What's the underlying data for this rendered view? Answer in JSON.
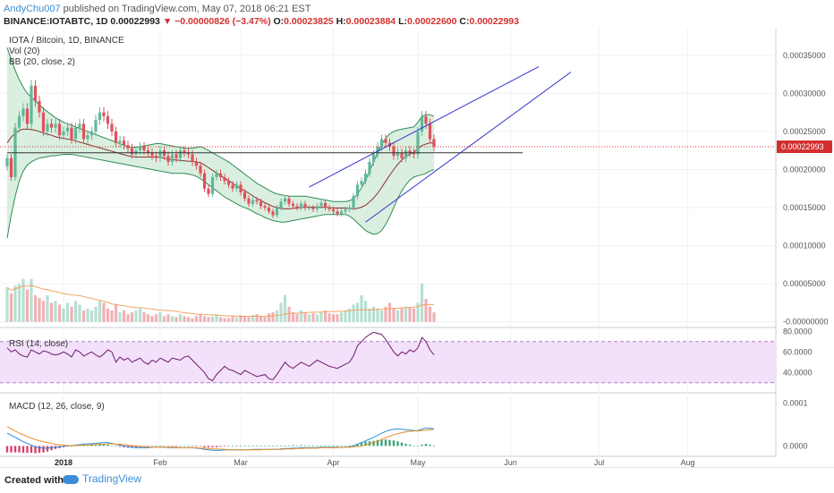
{
  "header": {
    "author": "AndyChu007",
    "published": "published on TradingView.com, May 07, 2018 06:21 EST"
  },
  "quote": {
    "symbol": "BINANCE:IOTABTC, 1D",
    "price": "0.00022993",
    "arrow": "▼",
    "change": "−0.00000826 (−3.47%)",
    "o_label": "O:",
    "o": "0.00023825",
    "h_label": "H:",
    "h": "0.00023884",
    "l_label": "L:",
    "l": "0.00022600",
    "c_label": "C:",
    "c": "0.00022993"
  },
  "legend": {
    "title": "IOTA / Bitcoin, 1D, BINANCE",
    "vol": "Vol (20)",
    "bb": "BB (20, close, 2)",
    "rsi": "RSI (14, close)",
    "macd": "MACD (12, 26, close, 9)"
  },
  "footer": {
    "created": "Created with",
    "brand": "TradingView"
  },
  "colors": {
    "up": "#5fb89b",
    "down": "#e0515c",
    "bb_fill": "#cde9d4",
    "bb_line": "#2e8b57",
    "basis": "#8b2f2f",
    "channel": "#3333cc",
    "rsi_line": "#6a1b6a",
    "rsi_band": "#f3e0fb",
    "macd": "#2a8ed8",
    "signal": "#f08a24",
    "vol_ma": "#f4a460",
    "price_line": "#d32f2f"
  },
  "chart_data": [
    {
      "type": "candlestick",
      "title": "IOTA / Bitcoin, 1D, BINANCE",
      "x_ticks": [
        "2018",
        "Feb",
        "Mar",
        "Apr",
        "May",
        "Jun",
        "Jul",
        "Aug"
      ],
      "y_ticks": [
        "0.00035000",
        "0.00030000",
        "0.00025000",
        "0.00020000",
        "0.00015000",
        "0.00010000",
        "0.00005000",
        "-0.00000000"
      ],
      "ylim": [
        -5e-06,
        0.000385
      ],
      "last_price": 0.00022993,
      "last_price_label": "0.00022993",
      "series": [
        {
          "name": "IOTABTC",
          "close": [
            0.000215,
            0.00019,
            0.000255,
            0.00027,
            0.00028,
            0.00026,
            0.00031,
            0.00029,
            0.000275,
            0.00025,
            0.00026,
            0.000255,
            0.00026,
            0.000245,
            0.00025,
            0.000255,
            0.00024,
            0.000255,
            0.00026,
            0.00024,
            0.000245,
            0.00025,
            0.000265,
            0.000275,
            0.00027,
            0.00026,
            0.00025,
            0.000235,
            0.000238,
            0.000232,
            0.000228,
            0.00022,
            0.000225,
            0.00023,
            0.000225,
            0.000222,
            0.000218,
            0.000215,
            0.000225,
            0.000218,
            0.00021,
            0.00022,
            0.000215,
            0.000225,
            0.000222,
            0.00022,
            0.00021,
            0.000205,
            0.000195,
            0.000175,
            0.000168,
            0.00019,
            0.000195,
            0.00019,
            0.000185,
            0.00018,
            0.000175,
            0.00018,
            0.00017,
            0.000162,
            0.000155,
            0.00016,
            0.000158,
            0.000152,
            0.00015,
            0.000145,
            0.00014,
            0.00015,
            0.000158,
            0.000162,
            0.000155,
            0.000152,
            0.00015,
            0.000155,
            0.00015,
            0.00015,
            0.000148,
            0.000152,
            0.000156,
            0.00015,
            0.000148,
            0.000145,
            0.000142,
            0.000145,
            0.000148,
            0.00015,
            0.000165,
            0.00018,
            0.000185,
            0.000195,
            0.00021,
            0.00022,
            0.00023,
            0.00024,
            0.000235,
            0.00023,
            0.000218,
            0.000222,
            0.000215,
            0.000225,
            0.000222,
            0.00022,
            0.00025,
            0.00027,
            0.00026,
            0.00024,
            0.00023
          ],
          "bb_upper": [
            0.00036,
            0.000345,
            0.00033,
            0.000318,
            0.000308,
            0.0003,
            0.000295,
            0.00029,
            0.000285,
            0.00028,
            0.000276,
            0.000272,
            0.000268,
            0.000265,
            0.000262,
            0.00026,
            0.000258,
            0.000256,
            0.000254,
            0.000252,
            0.00025,
            0.000248,
            0.000246,
            0.000244,
            0.000242,
            0.00024,
            0.000238,
            0.000236,
            0.000234,
            0.000232,
            0.00023,
            0.000229,
            0.000229,
            0.00023,
            0.000231,
            0.000232,
            0.000233,
            0.000234,
            0.000234,
            0.000233,
            0.000232,
            0.000231,
            0.00023,
            0.000229,
            0.000228,
            0.000228,
            0.000228,
            0.000229,
            0.00023,
            0.000228,
            0.000225,
            0.000222,
            0.000219,
            0.000216,
            0.000213,
            0.00021,
            0.000206,
            0.000202,
            0.000198,
            0.000194,
            0.00019,
            0.000186,
            0.000182,
            0.000179,
            0.000176,
            0.000173,
            0.00017,
            0.000168,
            0.000167,
            0.000166,
            0.000165,
            0.000165,
            0.000165,
            0.000165,
            0.000165,
            0.000164,
            0.000163,
            0.000162,
            0.000161,
            0.00016,
            0.000159,
            0.000158,
            0.000158,
            0.000158,
            0.000158,
            0.000159,
            0.000162,
            0.000168,
            0.000176,
            0.000186,
            0.000198,
            0.00021,
            0.000222,
            0.000233,
            0.000241,
            0.000247,
            0.00025,
            0.000252,
            0.000253,
            0.000254,
            0.000255,
            0.000256,
            0.000262,
            0.00027,
            0.000272,
            0.000272,
            0.00027
          ],
          "bb_lower": [
            0.00011,
            0.00014,
            0.000165,
            0.000185,
            0.000198,
            0.000206,
            0.00021,
            0.000213,
            0.000215,
            0.000216,
            0.000217,
            0.000218,
            0.000218,
            0.000219,
            0.00022,
            0.00022,
            0.00022,
            0.000219,
            0.000218,
            0.000217,
            0.000216,
            0.000215,
            0.000214,
            0.000213,
            0.000212,
            0.000211,
            0.00021,
            0.000209,
            0.000208,
            0.000207,
            0.000206,
            0.000205,
            0.000204,
            0.000203,
            0.000202,
            0.000201,
            0.0002,
            0.000199,
            0.000198,
            0.000197,
            0.000196,
            0.000195,
            0.000195,
            0.000195,
            0.000195,
            0.000194,
            0.000193,
            0.000191,
            0.000188,
            0.000184,
            0.00018,
            0.000176,
            0.000172,
            0.000168,
            0.000164,
            0.000161,
            0.000158,
            0.000155,
            0.000152,
            0.00015,
            0.000148,
            0.000145,
            0.000142,
            0.00014,
            0.000137,
            0.000135,
            0.000133,
            0.000132,
            0.000131,
            0.000131,
            0.000132,
            0.000133,
            0.000134,
            0.000135,
            0.000136,
            0.000137,
            0.000138,
            0.000139,
            0.00014,
            0.000141,
            0.000141,
            0.000141,
            0.000141,
            0.000141,
            0.000141,
            0.000139,
            0.000135,
            0.00013,
            0.000125,
            0.00012,
            0.000117,
            0.000115,
            0.000116,
            0.00012,
            0.000128,
            0.000138,
            0.00015,
            0.000162,
            0.000172,
            0.00018,
            0.000186,
            0.00019,
            0.000192,
            0.000193,
            0.000195,
            0.000198,
            0.0002
          ]
        }
      ],
      "drawings": [
        {
          "type": "trendline",
          "from": [
            75,
            0.000177
          ],
          "to": [
            132,
            0.000335
          ]
        },
        {
          "type": "trendline",
          "from": [
            89,
            0.000131
          ],
          "to": [
            140,
            0.000328
          ]
        },
        {
          "type": "horizontal",
          "from": [
            0,
            0.000222
          ],
          "to": [
            128,
            0.000222
          ]
        }
      ]
    },
    {
      "type": "bar",
      "name": "Vol (20)",
      "values": [
        36,
        30,
        38,
        40,
        45,
        34,
        45,
        28,
        25,
        22,
        28,
        20,
        22,
        18,
        14,
        20,
        16,
        22,
        18,
        12,
        14,
        12,
        16,
        22,
        20,
        14,
        12,
        18,
        10,
        12,
        8,
        10,
        12,
        14,
        10,
        8,
        6,
        8,
        10,
        6,
        8,
        6,
        5,
        8,
        6,
        5,
        4,
        6,
        8,
        6,
        5,
        6,
        8,
        5,
        4,
        4,
        6,
        5,
        7,
        6,
        5,
        7,
        8,
        6,
        5,
        9,
        10,
        12,
        20,
        28,
        16,
        10,
        8,
        12,
        10,
        8,
        9,
        8,
        10,
        12,
        9,
        8,
        8,
        10,
        12,
        14,
        18,
        20,
        28,
        22,
        14,
        16,
        14,
        12,
        16,
        20,
        14,
        12,
        14,
        16,
        15,
        14,
        20,
        40,
        24,
        16,
        10
      ]
    },
    {
      "type": "line",
      "name": "RSI (14, close)",
      "y_ticks": [
        "80.0000",
        "60.0000",
        "40.0000"
      ],
      "ylim": [
        22,
        82
      ],
      "values": [
        64,
        60,
        62,
        58,
        56,
        55,
        62,
        60,
        58,
        61,
        60,
        58,
        57,
        58,
        60,
        58,
        55,
        62,
        60,
        56,
        58,
        60,
        57,
        55,
        58,
        62,
        60,
        50,
        55,
        52,
        54,
        50,
        52,
        54,
        50,
        48,
        52,
        50,
        54,
        52,
        50,
        54,
        53,
        52,
        55,
        56,
        52,
        48,
        44,
        40,
        34,
        32,
        38,
        42,
        46,
        43,
        42,
        40,
        38,
        42,
        40,
        38,
        36,
        37,
        38,
        34,
        33,
        38,
        44,
        50,
        46,
        44,
        47,
        50,
        48,
        46,
        49,
        52,
        50,
        48,
        46,
        45,
        44,
        46,
        48,
        50,
        56,
        66,
        70,
        74,
        77,
        79,
        78,
        77,
        72,
        66,
        60,
        56,
        60,
        58,
        62,
        60,
        64,
        74,
        70,
        62,
        57
      ],
      "band": [
        30,
        70
      ]
    },
    {
      "type": "line",
      "name": "MACD (12, 26, close, 9)",
      "y_ticks": [
        "0.0001",
        "0.0000"
      ],
      "ylim": [
        -2e-05,
        0.00012
      ],
      "series": [
        {
          "name": "MACD",
          "values": [
            3e-05,
            2.5e-05,
            2e-05,
            1.5e-05,
            1e-05,
            6e-06,
            2e-06,
            -2e-06,
            -4e-06,
            -5e-06,
            -5e-06,
            -4e-06,
            -3e-06,
            -2e-06,
            -1e-06,
            0,
            1e-06,
            2e-06,
            3e-06,
            4e-06,
            5e-06,
            5e-06,
            6e-06,
            7e-06,
            8e-06,
            8e-06,
            6e-06,
            4e-06,
            2e-06,
            0,
            -2e-06,
            -3e-06,
            -4e-06,
            -4e-06,
            -4e-06,
            -4e-06,
            -3e-06,
            -3e-06,
            -3e-06,
            -3e-06,
            -4e-06,
            -4e-06,
            -4e-06,
            -4e-06,
            -4e-06,
            -4e-06,
            -4e-06,
            -5e-06,
            -6e-06,
            -8e-06,
            -9e-06,
            -1e-05,
            -1e-05,
            -1e-05,
            -9e-06,
            -9e-06,
            -9e-06,
            -9e-06,
            -9e-06,
            -9e-06,
            -9e-06,
            -8e-06,
            -8e-06,
            -8e-06,
            -8e-06,
            -8e-06,
            -8e-06,
            -8e-06,
            -7e-06,
            -6e-06,
            -6e-06,
            -5e-06,
            -5e-06,
            -4e-06,
            -4e-06,
            -4e-06,
            -4e-06,
            -4e-06,
            -3e-06,
            -3e-06,
            -3e-06,
            -3e-06,
            -3e-06,
            -3e-06,
            -3e-06,
            -2e-06,
            0,
            4e-06,
            8e-06,
            1.2e-05,
            1.6e-05,
            2e-05,
            2.5e-05,
            3e-05,
            3.4e-05,
            3.7e-05,
            3.9e-05,
            4e-05,
            3.9e-05,
            3.8e-05,
            3.7e-05,
            3.6e-05,
            3.6e-05,
            3.9e-05,
            4.2e-05,
            4.1e-05,
            4e-05
          ]
        },
        {
          "name": "Signal",
          "values": [
            4.5e-05,
            4e-05,
            3.5e-05,
            3e-05,
            2.6e-05,
            2.2e-05,
            1.8e-05,
            1.5e-05,
            1.2e-05,
            1e-05,
            8e-06,
            6e-06,
            4e-06,
            3e-06,
            2e-06,
            1e-06,
            1e-06,
            1e-06,
            1e-06,
            2e-06,
            2e-06,
            3e-06,
            3e-06,
            4e-06,
            4e-06,
            5e-06,
            5e-06,
            4e-06,
            4e-06,
            3e-06,
            2e-06,
            1e-06,
            0,
            -1e-06,
            -2e-06,
            -2e-06,
            -3e-06,
            -3e-06,
            -3e-06,
            -3e-06,
            -3e-06,
            -3e-06,
            -3e-06,
            -4e-06,
            -4e-06,
            -4e-06,
            -4e-06,
            -4e-06,
            -5e-06,
            -5e-06,
            -6e-06,
            -7e-06,
            -7e-06,
            -8e-06,
            -8e-06,
            -9e-06,
            -9e-06,
            -9e-06,
            -9e-06,
            -9e-06,
            -9e-06,
            -9e-06,
            -9e-06,
            -9e-06,
            -8e-06,
            -8e-06,
            -8e-06,
            -8e-06,
            -8e-06,
            -7e-06,
            -7e-06,
            -7e-06,
            -6e-06,
            -6e-06,
            -5e-06,
            -5e-06,
            -5e-06,
            -5e-06,
            -4e-06,
            -4e-06,
            -4e-06,
            -4e-06,
            -4e-06,
            -3e-06,
            -3e-06,
            -3e-06,
            -2e-06,
            -1e-06,
            0,
            2e-06,
            5e-06,
            8e-06,
            1.1e-05,
            1.5e-05,
            1.9e-05,
            2.3e-05,
            2.6e-05,
            2.9e-05,
            3.1e-05,
            3.3e-05,
            3.4e-05,
            3.5e-05,
            3.5e-05,
            3.6e-05,
            3.7e-05,
            3.8e-05,
            3.9e-05
          ]
        }
      ]
    }
  ]
}
